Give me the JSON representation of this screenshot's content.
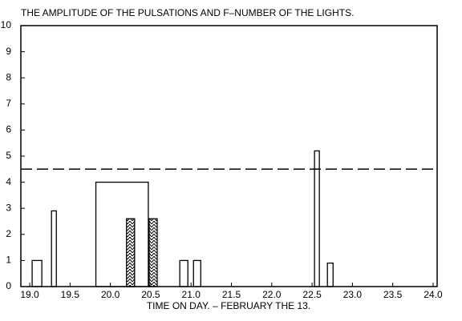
{
  "chart_data": {
    "type": "bar",
    "title": "THE AMPLITUDE OF THE PULSATIONS AND F–NUMBER OF THE LIGHTS.",
    "x_label": "TIME ON DAY. – FEBRUARY THE 13.",
    "x_start": [
      19.03,
      19.27,
      19.82,
      20.2,
      20.48,
      20.86,
      21.03,
      22.53,
      22.69
    ],
    "x_end": [
      19.15,
      19.33,
      20.47,
      20.3,
      20.58,
      20.96,
      21.12,
      22.59,
      22.76
    ],
    "values": [
      1,
      2.9,
      4,
      2.6,
      2.6,
      1,
      1,
      5.2,
      0.9
    ],
    "hatch": [
      false,
      false,
      false,
      true,
      true,
      false,
      false,
      false,
      false
    ],
    "color": "#000000",
    "reference_line": 4.5,
    "xlim": [
      18.89,
      24.05
    ],
    "xticks": [
      {
        "value": 19,
        "label": "19.0"
      },
      19.5,
      {
        "value": 20,
        "label": "20.0"
      },
      20.5,
      {
        "value": 21,
        "label": "21.0"
      },
      21.5,
      {
        "value": 22,
        "label": "22.0"
      },
      22.5,
      {
        "value": 23,
        "label": "23.0"
      },
      23.5,
      {
        "value": 24,
        "label": "24.0"
      }
    ],
    "ylim": [
      0,
      10
    ],
    "yticks": [
      0,
      1,
      2,
      3,
      4,
      5,
      6,
      7,
      8,
      9,
      10
    ]
  }
}
